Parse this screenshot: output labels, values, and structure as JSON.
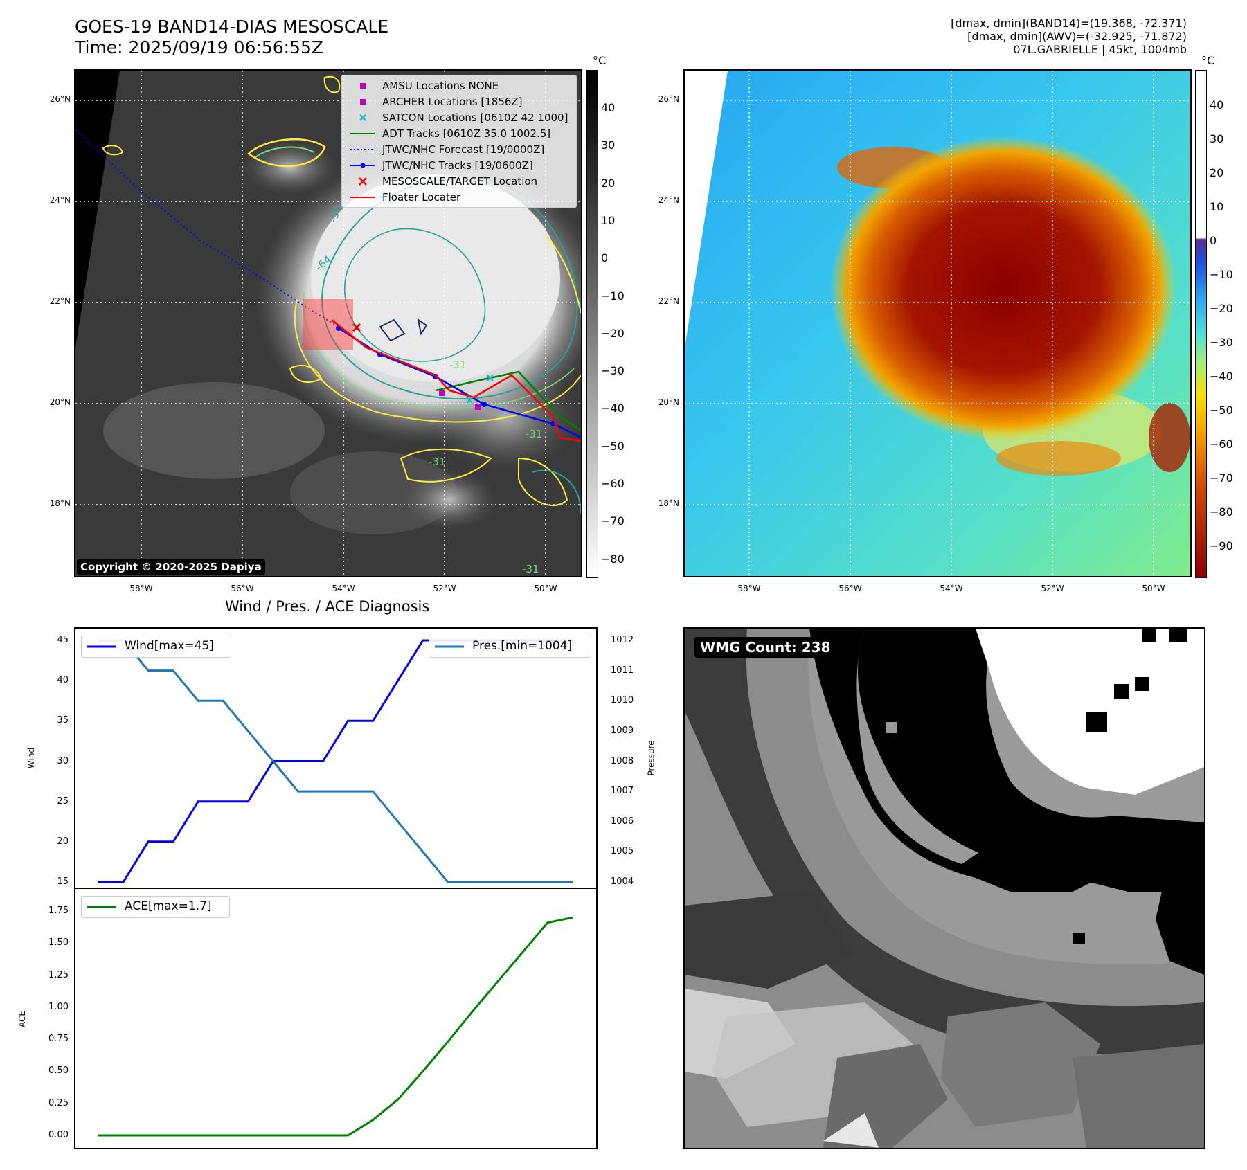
{
  "header": {
    "title_line1": "GOES-19 BAND14-DIAS MESOSCALE",
    "title_line2": "Time: 2025/09/19 06:56:55Z",
    "info_line1": "[dmax, dmin](BAND14)=(19.368, -72.371)",
    "info_line2": "[dmax, dmin](AWV)=(-32.925, -71.872)",
    "info_line3": "07L.GABRIELLE | 45kt, 1004mb"
  },
  "map": {
    "lat_labels": [
      "26°N",
      "24°N",
      "22°N",
      "20°N",
      "18°N"
    ],
    "lon_labels": [
      "58°W",
      "56°W",
      "54°W",
      "52°W",
      "50°W"
    ],
    "unit": "°C",
    "left_colorbar_ticks": [
      "40",
      "30",
      "20",
      "10",
      "0",
      "−10",
      "−20",
      "−30",
      "−40",
      "−50",
      "−60",
      "−70",
      "−80"
    ],
    "right_colorbar_ticks": [
      "40",
      "30",
      "20",
      "10",
      "0",
      "−10",
      "−20",
      "−30",
      "−40",
      "−50",
      "−60",
      "−70",
      "−80",
      "−90"
    ],
    "contour_labels": [
      "-54",
      "-64",
      "-31",
      "-31",
      "-31",
      "-31"
    ],
    "copyright": "Copyright © 2020-2025 Dapiya",
    "legend": [
      {
        "label": "AMSU Locations NONE",
        "color": "#c000c0",
        "kind": "square"
      },
      {
        "label": "ARCHER Locations [1856Z]",
        "color": "#c000c0",
        "kind": "square"
      },
      {
        "label": "SATCON Locations [0610Z 42 1000]",
        "color": "#17becf",
        "kind": "x"
      },
      {
        "label": "ADT Tracks [0610Z 35.0 1002.5]",
        "color": "#008000",
        "kind": "line"
      },
      {
        "label": "JTWC/NHC Forecast [19/0000Z]",
        "color": "#0000ff",
        "kind": "dotted"
      },
      {
        "label": "JTWC/NHC Tracks [19/0600Z]",
        "color": "#0000ff",
        "kind": "linedot"
      },
      {
        "label": "MESOSCALE/TARGET Location",
        "color": "#ff0000",
        "kind": "x"
      },
      {
        "label": "Floater Locater",
        "color": "#ff0000",
        "kind": "line"
      }
    ]
  },
  "diag": {
    "title": "Wind / Pres. / ACE Diagnosis",
    "wind_label": "Wind",
    "pressure_label": "Pressure",
    "ace_label": "ACE",
    "legend_wind": "Wind[max=45]",
    "legend_pres": "Pres.[min=1004]",
    "legend_ace": "ACE[max=1.7]",
    "wind_ticks": [
      "45",
      "40",
      "35",
      "30",
      "25",
      "20",
      "15"
    ],
    "pres_ticks": [
      "1012",
      "1011",
      "1010",
      "1009",
      "1008",
      "1007",
      "1006",
      "1005",
      "1004"
    ],
    "ace_ticks": [
      "1.75",
      "1.50",
      "1.25",
      "1.00",
      "0.75",
      "0.50",
      "0.25",
      "0.00"
    ]
  },
  "wmg": {
    "label": "WMG Count: 238"
  },
  "chart_data": [
    {
      "type": "line",
      "title": "Wind / Pres. / ACE Diagnosis",
      "x": [
        0,
        1,
        2,
        3,
        4,
        5,
        6,
        7,
        8,
        9,
        10,
        11,
        12,
        13,
        14,
        15,
        16,
        17,
        18,
        19
      ],
      "series": [
        {
          "name": "Wind[max=45]",
          "color": "#0000ee",
          "values": [
            15,
            15,
            20,
            20,
            25,
            25,
            25,
            30,
            30,
            30,
            35,
            35,
            40,
            45,
            45,
            45,
            45,
            45,
            45,
            45
          ]
        },
        {
          "name": "Pres.[min=1004]",
          "color": "#1f77b4",
          "axis": "right",
          "values": [
            1012,
            1012,
            1011,
            1011,
            1010,
            1010,
            1009,
            1008,
            1007,
            1007,
            1007,
            1007,
            1006,
            1005,
            1004,
            1004,
            1004,
            1004,
            1004,
            1004
          ]
        }
      ],
      "ylabel": "Wind",
      "ylabel_right": "Pressure",
      "ylim": [
        14.5,
        45.5
      ],
      "ylim_right": [
        1003.9,
        1012.1
      ]
    },
    {
      "type": "line",
      "x": [
        0,
        1,
        2,
        3,
        4,
        5,
        6,
        7,
        8,
        9,
        10,
        11,
        12,
        13,
        14,
        15,
        16,
        17,
        18,
        19
      ],
      "series": [
        {
          "name": "ACE[max=1.7]",
          "color": "#008000",
          "values": [
            0,
            0,
            0,
            0,
            0,
            0,
            0,
            0,
            0,
            0,
            0,
            0.12,
            0.28,
            0.5,
            0.73,
            0.97,
            1.2,
            1.43,
            1.66,
            1.7
          ]
        }
      ],
      "ylabel": "ACE",
      "ylim": [
        -0.09,
        1.78
      ]
    }
  ]
}
